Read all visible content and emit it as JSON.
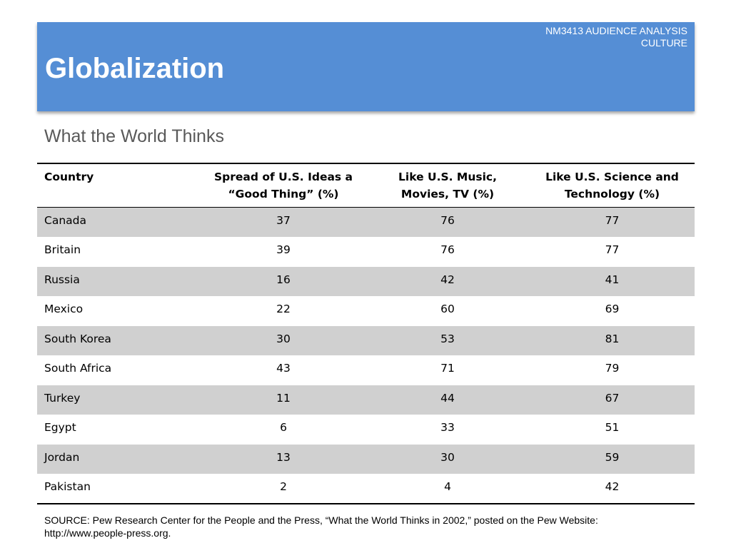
{
  "header": {
    "course_line1": "NM3413 AUDIENCE ANALYSIS",
    "course_line2": "CULTURE",
    "title": "Globalization"
  },
  "subtitle": "What the World Thinks",
  "table": {
    "columns": [
      "Country",
      "Spread of U.S. Ideas a “Good Thing” (%)",
      "Like U.S. Music, Movies, TV (%)",
      "Like U.S. Science and Technology (%)"
    ],
    "rows": [
      [
        "Canada",
        "37",
        "76",
        "77"
      ],
      [
        "Britain",
        "39",
        "76",
        "77"
      ],
      [
        "Russia",
        "16",
        "42",
        "41"
      ],
      [
        "Mexico",
        "22",
        "60",
        "69"
      ],
      [
        "South Korea",
        "30",
        "53",
        "81"
      ],
      [
        "South Africa",
        "43",
        "71",
        "79"
      ],
      [
        "Turkey",
        "11",
        "44",
        "67"
      ],
      [
        "Egypt",
        "6",
        "33",
        "51"
      ],
      [
        "Jordan",
        "13",
        "30",
        "59"
      ],
      [
        "Pakistan",
        "2",
        "4",
        "42"
      ]
    ]
  },
  "source": "SOURCE: Pew Research Center for the People and the Press, “What the World Thinks in 2002,” posted on the Pew Website: http://www.people-press.org.",
  "colors": {
    "header_band": "#558ed5",
    "stripe_row": "#d0d0d0",
    "subtitle_text": "#595959"
  }
}
